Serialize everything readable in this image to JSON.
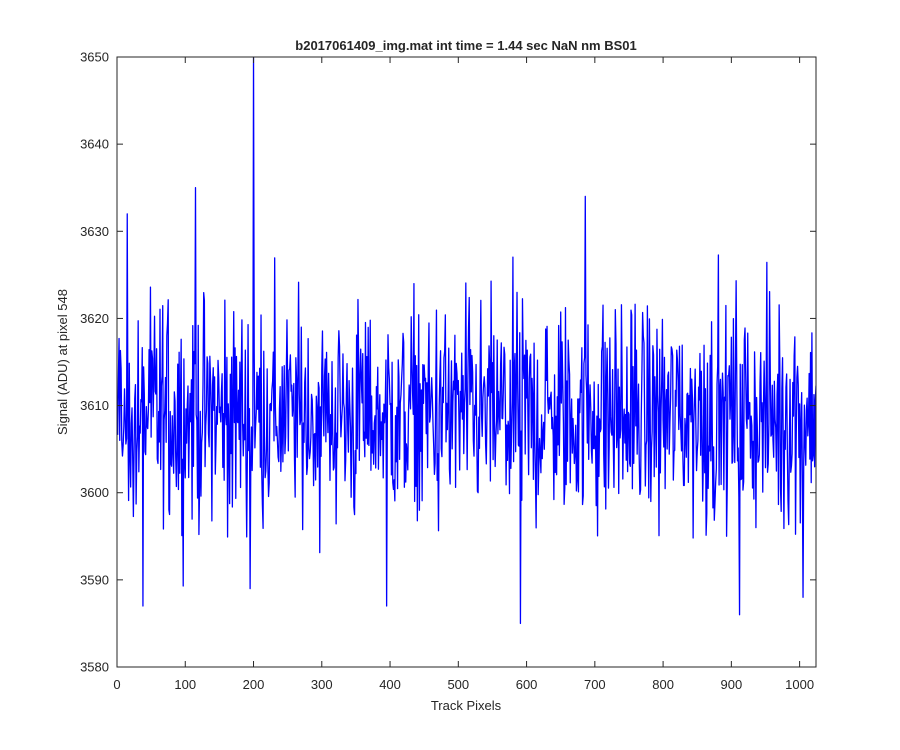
{
  "chart_data": {
    "type": "line",
    "title": "b2017061409_img.mat int time = 1.44 sec  NaN nm BS01",
    "xlabel": "Track Pixels",
    "ylabel": "Signal (ADU) at pixel 548",
    "xlim": [
      0,
      1024
    ],
    "ylim": [
      3580,
      3650
    ],
    "xticks": [
      0,
      100,
      200,
      300,
      400,
      500,
      600,
      700,
      800,
      900,
      1000
    ],
    "yticks": [
      3580,
      3590,
      3600,
      3610,
      3620,
      3630,
      3640,
      3650
    ],
    "xtick_labels": [
      "0",
      "100",
      "200",
      "300",
      "400",
      "500",
      "600",
      "700",
      "800",
      "900",
      "1000"
    ],
    "ytick_labels": [
      "3580",
      "3590",
      "3600",
      "3610",
      "3620",
      "3630",
      "3640",
      "3650"
    ],
    "grid": false,
    "box": true,
    "series": [
      {
        "color": "#0000ff",
        "x_start": 1,
        "x_step": 1,
        "y_min": 3585,
        "y_max": 3650,
        "y_mean": 3609,
        "count": 1024,
        "notable_points": [
          {
            "x": 15,
            "y": 3632
          },
          {
            "x": 38,
            "y": 3587
          },
          {
            "x": 115,
            "y": 3635
          },
          {
            "x": 195,
            "y": 3589
          },
          {
            "x": 200,
            "y": 3650
          },
          {
            "x": 395,
            "y": 3587
          },
          {
            "x": 591,
            "y": 3585
          },
          {
            "x": 686,
            "y": 3634
          },
          {
            "x": 912,
            "y": 3586
          },
          {
            "x": 1005,
            "y": 3588
          }
        ]
      }
    ]
  }
}
